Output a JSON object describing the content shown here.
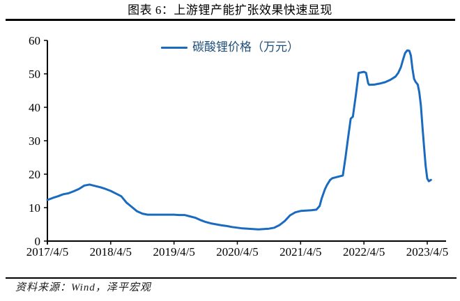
{
  "page": {
    "title": "图表 6：上游锂产能扩张效果快速显现",
    "source": "资料来源：Wind，泽平宏观"
  },
  "colors": {
    "line": "#1a6bc0",
    "legend_text": "#1f4e79",
    "axis": "#000000",
    "rule": "#000000"
  },
  "chart_data": {
    "type": "line",
    "title": "图表 6：上游锂产能扩张效果快速显现",
    "legend": "碳酸锂价格（万元）",
    "legend_position": "top-center",
    "grid": false,
    "ylabel": "",
    "xlabel": "",
    "ylim": [
      0,
      60
    ],
    "xlim_months": [
      0,
      73
    ],
    "x_unit": "months since 2017/4/5",
    "y_ticks": [
      0,
      10,
      20,
      30,
      40,
      50,
      60
    ],
    "x_ticks": [
      {
        "pos": 0,
        "label": "2017/4/5"
      },
      {
        "pos": 12,
        "label": "2018/4/5"
      },
      {
        "pos": 24,
        "label": "2019/4/5"
      },
      {
        "pos": 36,
        "label": "2020/4/5"
      },
      {
        "pos": 48,
        "label": "2021/4/5"
      },
      {
        "pos": 60,
        "label": "2022/4/5"
      },
      {
        "pos": 72,
        "label": "2023/4/5"
      }
    ],
    "series": [
      {
        "name": "碳酸锂价格（万元）",
        "color": "#1a6bc0",
        "points": [
          [
            0,
            12.3
          ],
          [
            1,
            12.9
          ],
          [
            2,
            13.4
          ],
          [
            3,
            14.0
          ],
          [
            4,
            14.3
          ],
          [
            5,
            14.9
          ],
          [
            6,
            15.6
          ],
          [
            7,
            16.6
          ],
          [
            8,
            16.9
          ],
          [
            9,
            16.5
          ],
          [
            10,
            16.1
          ],
          [
            11,
            15.6
          ],
          [
            12,
            15.0
          ],
          [
            13,
            14.2
          ],
          [
            14,
            13.4
          ],
          [
            15,
            11.5
          ],
          [
            16,
            10.2
          ],
          [
            17,
            8.9
          ],
          [
            18,
            8.2
          ],
          [
            19,
            7.9
          ],
          [
            20,
            7.9
          ],
          [
            21,
            7.9
          ],
          [
            22,
            7.9
          ],
          [
            23,
            7.9
          ],
          [
            24,
            7.9
          ],
          [
            25,
            7.8
          ],
          [
            26,
            7.8
          ],
          [
            27,
            7.4
          ],
          [
            28,
            7.0
          ],
          [
            29,
            6.3
          ],
          [
            30,
            5.7
          ],
          [
            31,
            5.3
          ],
          [
            32,
            5.0
          ],
          [
            33,
            4.7
          ],
          [
            34,
            4.5
          ],
          [
            35,
            4.2
          ],
          [
            36,
            4.0
          ],
          [
            37,
            3.8
          ],
          [
            38,
            3.7
          ],
          [
            39,
            3.6
          ],
          [
            40,
            3.5
          ],
          [
            41,
            3.6
          ],
          [
            42,
            3.7
          ],
          [
            43,
            4.0
          ],
          [
            44,
            4.8
          ],
          [
            45,
            6.0
          ],
          [
            46,
            7.7
          ],
          [
            47,
            8.6
          ],
          [
            48,
            9.0
          ],
          [
            49,
            9.1
          ],
          [
            50,
            9.2
          ],
          [
            51,
            9.4
          ],
          [
            51.6,
            10.5
          ],
          [
            52,
            12.8
          ],
          [
            52.6,
            15.5
          ],
          [
            53,
            16.8
          ],
          [
            53.6,
            18.3
          ],
          [
            54,
            18.8
          ],
          [
            55,
            19.2
          ],
          [
            56,
            19.6
          ],
          [
            56.5,
            25.0
          ],
          [
            57,
            31.0
          ],
          [
            57.5,
            36.6
          ],
          [
            57.9,
            37.2
          ],
          [
            58.5,
            44.0
          ],
          [
            59,
            50.3
          ],
          [
            60,
            50.6
          ],
          [
            60.4,
            50.3
          ],
          [
            60.8,
            47.2
          ],
          [
            61,
            46.7
          ],
          [
            62,
            46.8
          ],
          [
            63,
            47.1
          ],
          [
            64,
            47.5
          ],
          [
            65,
            48.2
          ],
          [
            66,
            49.2
          ],
          [
            66.5,
            50.3
          ],
          [
            67,
            52.0
          ],
          [
            67.4,
            54.2
          ],
          [
            67.8,
            56.2
          ],
          [
            68.2,
            57.0
          ],
          [
            68.6,
            56.9
          ],
          [
            68.9,
            55.5
          ],
          [
            69.2,
            51.5
          ],
          [
            69.5,
            48.5
          ],
          [
            69.8,
            47.6
          ],
          [
            70.2,
            46.8
          ],
          [
            70.5,
            44.5
          ],
          [
            70.8,
            40.5
          ],
          [
            71.1,
            34.0
          ],
          [
            71.4,
            28.0
          ],
          [
            71.7,
            22.5
          ],
          [
            72,
            18.7
          ],
          [
            72.3,
            17.9
          ],
          [
            72.7,
            18.3
          ]
        ]
      }
    ]
  }
}
